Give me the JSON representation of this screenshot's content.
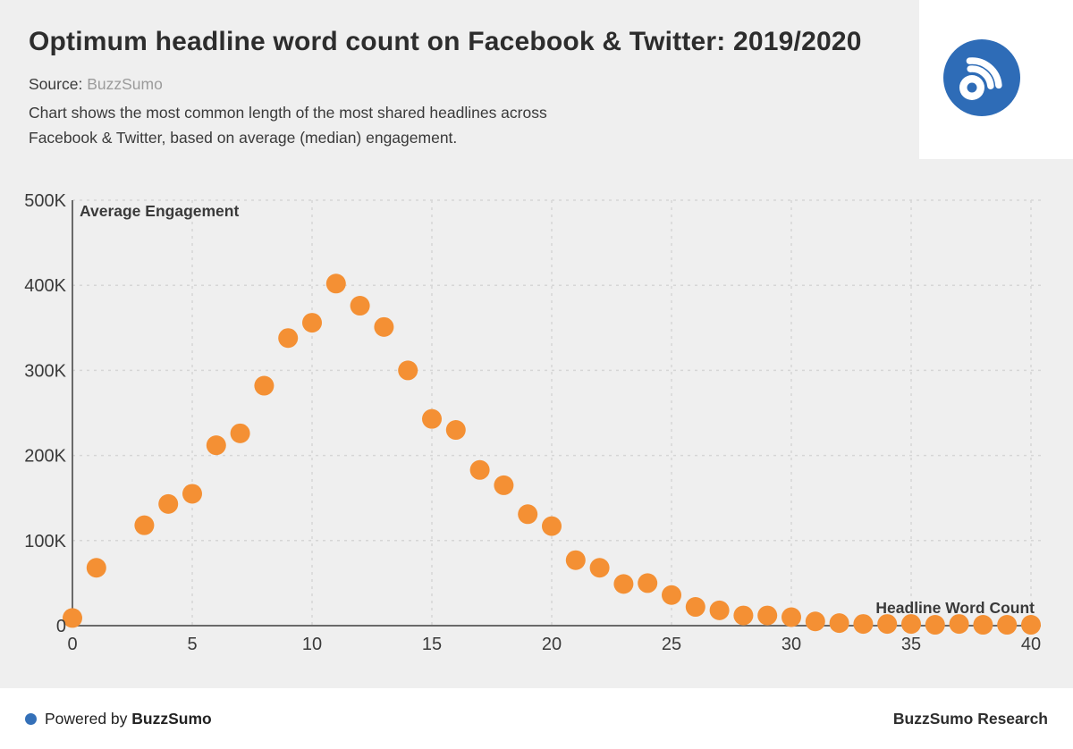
{
  "header": {
    "title": "Optimum headline word count on Facebook & Twitter: 2019/2020",
    "source_label": "Source:",
    "source_value": "BuzzSumo",
    "description_line1": "Chart shows the most common length of the most shared headlines across",
    "description_line2": "Facebook & Twitter, based on average (median) engagement."
  },
  "logo": {
    "icon": "buzzsumo-rss-icon",
    "background_color": "#2E6CB7"
  },
  "chart_data": {
    "type": "scatter",
    "title": "",
    "xlabel": "Headline Word Count",
    "ylabel": "Average Engagement",
    "xlim": [
      0,
      40
    ],
    "ylim": [
      0,
      500000
    ],
    "x_ticks": [
      0,
      5,
      10,
      15,
      20,
      25,
      30,
      35,
      40
    ],
    "y_ticks": [
      {
        "label": "0",
        "value": 0
      },
      {
        "label": "100K",
        "value": 100000
      },
      {
        "label": "200K",
        "value": 200000
      },
      {
        "label": "300K",
        "value": 300000
      },
      {
        "label": "400K",
        "value": 400000
      },
      {
        "label": "500K",
        "value": 500000
      }
    ],
    "grid": true,
    "legend_position": "none",
    "point_color": "#F49034",
    "points": [
      [
        0,
        9000
      ],
      [
        1,
        68000
      ],
      [
        3,
        118000
      ],
      [
        4,
        143000
      ],
      [
        5,
        155000
      ],
      [
        6,
        212000
      ],
      [
        7,
        226000
      ],
      [
        8,
        282000
      ],
      [
        9,
        338000
      ],
      [
        10,
        356000
      ],
      [
        11,
        402000
      ],
      [
        12,
        376000
      ],
      [
        13,
        351000
      ],
      [
        14,
        300000
      ],
      [
        15,
        243000
      ],
      [
        16,
        230000
      ],
      [
        17,
        183000
      ],
      [
        18,
        165000
      ],
      [
        19,
        131000
      ],
      [
        20,
        117000
      ],
      [
        21,
        77000
      ],
      [
        22,
        68000
      ],
      [
        23,
        49000
      ],
      [
        24,
        50000
      ],
      [
        25,
        36000
      ],
      [
        26,
        22000
      ],
      [
        27,
        18000
      ],
      [
        28,
        12000
      ],
      [
        29,
        12000
      ],
      [
        30,
        10000
      ],
      [
        31,
        5000
      ],
      [
        32,
        3000
      ],
      [
        33,
        2000
      ],
      [
        34,
        2000
      ],
      [
        35,
        2000
      ],
      [
        36,
        1000
      ],
      [
        37,
        2000
      ],
      [
        38,
        1000
      ],
      [
        39,
        1000
      ],
      [
        40,
        1000
      ]
    ]
  },
  "footer": {
    "powered_by_prefix": "Powered by",
    "powered_by_brand": "BuzzSumo",
    "research_label": "BuzzSumo Research"
  },
  "colors": {
    "background": "#EFEFEF",
    "panel": "#FFFFFF",
    "accent_orange": "#F49034",
    "accent_blue": "#2E6CB7",
    "text_dark": "#2D2D2D",
    "text_muted": "#9B9B9B",
    "grid": "#D6D6D6",
    "axis": "#6A6A6A"
  }
}
